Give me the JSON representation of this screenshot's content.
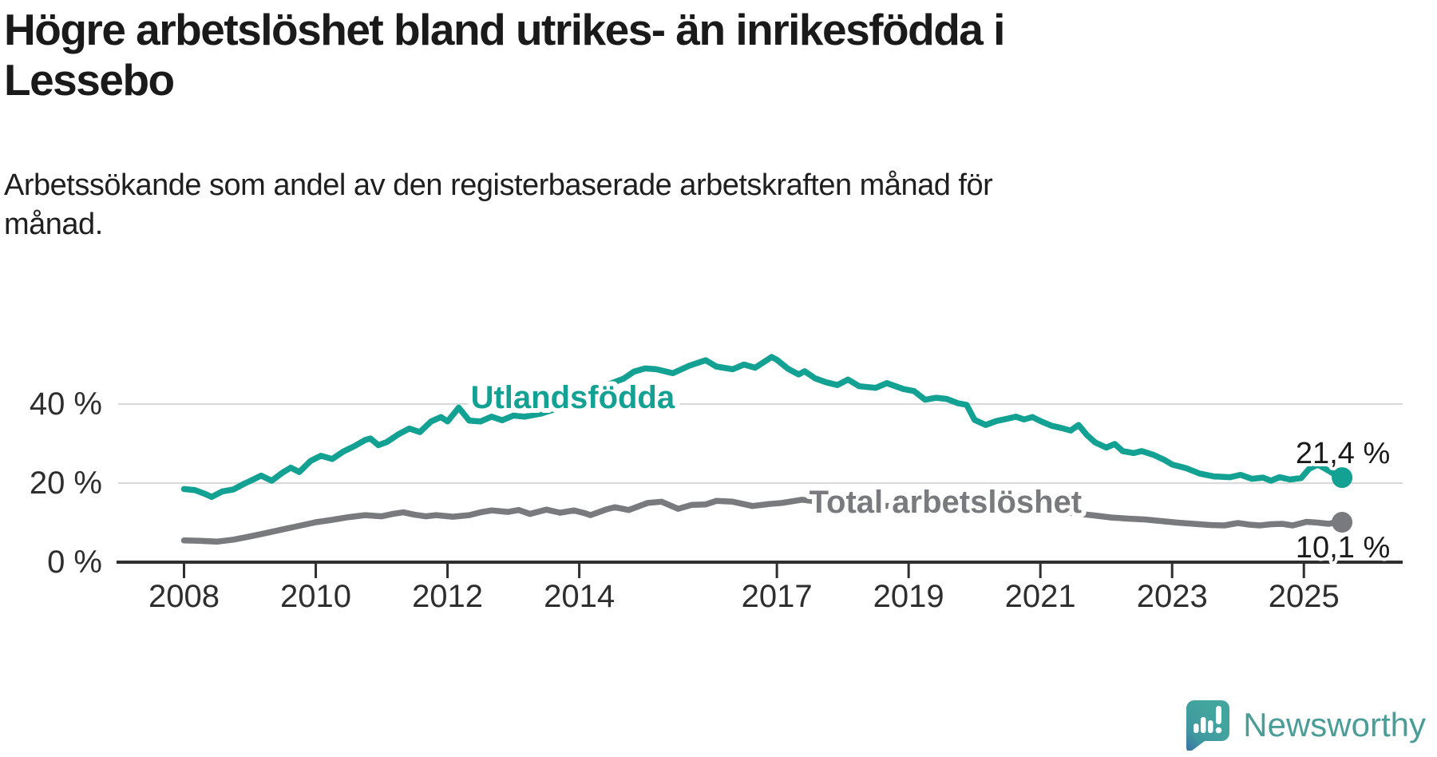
{
  "header": {
    "title_lines": [
      "Högre arbetslöshet bland utrikes- än inrikesfödda i",
      "Lessebo"
    ],
    "subtitle_lines": [
      "Arbetssökande som andel av den registerbaserade arbetskraften månad för",
      "månad."
    ]
  },
  "chart_data": {
    "type": "line",
    "title": "Högre arbetslöshet bland utrikes- än inrikesfödda i Lessebo",
    "subtitle": "Arbetssökande som andel av den registerbaserade arbetskraften månad för månad.",
    "xlabel": "",
    "ylabel": "",
    "grid": "horizontal",
    "xlim": [
      2007.0,
      2026.5
    ],
    "ylim": [
      0,
      57
    ],
    "x_ticks": [
      2008,
      2010,
      2012,
      2014,
      2017,
      2019,
      2021,
      2023,
      2025
    ],
    "x_tick_labels": [
      "2008",
      "2010",
      "2012",
      "2014",
      "2017",
      "2019",
      "2021",
      "2023",
      "2025"
    ],
    "y_ticks": [
      0,
      20,
      40
    ],
    "y_tick_labels": [
      "0 %",
      "20 %",
      "40 %"
    ],
    "axis_color": "#2f2f2f",
    "grid_color": "#d9d9d9",
    "series": [
      {
        "name": "Total arbetslöshet",
        "color": "#797a7d",
        "end_label": "10,1 %",
        "end_value": 10.1,
        "label_anchor": {
          "x": 2019.56,
          "y": 15.35
        },
        "points": [
          [
            2008.0,
            5.5
          ],
          [
            2008.25,
            5.4
          ],
          [
            2008.5,
            5.2
          ],
          [
            2008.75,
            5.7
          ],
          [
            2009.0,
            6.5
          ],
          [
            2009.25,
            7.4
          ],
          [
            2009.5,
            8.3
          ],
          [
            2009.75,
            9.2
          ],
          [
            2010.0,
            10.1
          ],
          [
            2010.25,
            10.7
          ],
          [
            2010.5,
            11.4
          ],
          [
            2010.75,
            11.9
          ],
          [
            2011.0,
            11.6
          ],
          [
            2011.17,
            12.2
          ],
          [
            2011.33,
            12.6
          ],
          [
            2011.5,
            12.0
          ],
          [
            2011.67,
            11.6
          ],
          [
            2011.83,
            11.9
          ],
          [
            2012.08,
            11.5
          ],
          [
            2012.33,
            11.9
          ],
          [
            2012.5,
            12.6
          ],
          [
            2012.67,
            13.1
          ],
          [
            2012.92,
            12.7
          ],
          [
            2013.08,
            13.2
          ],
          [
            2013.25,
            12.2
          ],
          [
            2013.5,
            13.3
          ],
          [
            2013.71,
            12.5
          ],
          [
            2013.92,
            13.1
          ],
          [
            2014.08,
            12.4
          ],
          [
            2014.17,
            11.9
          ],
          [
            2014.42,
            13.4
          ],
          [
            2014.54,
            13.9
          ],
          [
            2014.75,
            13.2
          ],
          [
            2015.04,
            15.0
          ],
          [
            2015.25,
            15.3
          ],
          [
            2015.5,
            13.5
          ],
          [
            2015.71,
            14.5
          ],
          [
            2015.92,
            14.6
          ],
          [
            2016.08,
            15.5
          ],
          [
            2016.33,
            15.3
          ],
          [
            2016.63,
            14.2
          ],
          [
            2016.88,
            14.7
          ],
          [
            2017.08,
            15.0
          ],
          [
            2017.38,
            15.8
          ],
          [
            2017.54,
            15.5
          ],
          [
            2017.71,
            14.7
          ],
          [
            2017.92,
            14.4
          ],
          [
            2018.17,
            14.9
          ],
          [
            2018.5,
            14.4
          ],
          [
            2018.83,
            14.1
          ],
          [
            2019.17,
            13.8
          ],
          [
            2019.5,
            13.5
          ],
          [
            2019.83,
            13.3
          ],
          [
            2020.08,
            13.5
          ],
          [
            2020.33,
            14.2
          ],
          [
            2020.58,
            14.3
          ],
          [
            2020.83,
            13.9
          ],
          [
            2021.17,
            13.1
          ],
          [
            2021.5,
            12.4
          ],
          [
            2021.83,
            11.8
          ],
          [
            2022.08,
            11.3
          ],
          [
            2022.33,
            11.0
          ],
          [
            2022.58,
            10.8
          ],
          [
            2022.83,
            10.4
          ],
          [
            2023.08,
            10.0
          ],
          [
            2023.33,
            9.7
          ],
          [
            2023.58,
            9.4
          ],
          [
            2023.79,
            9.3
          ],
          [
            2024.0,
            9.9
          ],
          [
            2024.17,
            9.5
          ],
          [
            2024.33,
            9.3
          ],
          [
            2024.5,
            9.6
          ],
          [
            2024.67,
            9.7
          ],
          [
            2024.83,
            9.3
          ],
          [
            2025.04,
            10.2
          ],
          [
            2025.21,
            10.0
          ],
          [
            2025.38,
            9.7
          ],
          [
            2025.5,
            10.2
          ],
          [
            2025.58,
            10.1
          ]
        ]
      },
      {
        "name": "Utlandsfödda",
        "color": "#12a192",
        "end_label": "21,4 %",
        "end_value": 21.4,
        "label_anchor": {
          "x": 2013.9,
          "y": 41.8
        },
        "points": [
          [
            2008.0,
            18.5
          ],
          [
            2008.17,
            18.2
          ],
          [
            2008.33,
            17.2
          ],
          [
            2008.42,
            16.5
          ],
          [
            2008.58,
            17.9
          ],
          [
            2008.75,
            18.4
          ],
          [
            2008.92,
            19.9
          ],
          [
            2009.0,
            20.5
          ],
          [
            2009.17,
            21.9
          ],
          [
            2009.33,
            20.6
          ],
          [
            2009.5,
            22.7
          ],
          [
            2009.62,
            23.9
          ],
          [
            2009.75,
            22.8
          ],
          [
            2009.92,
            25.6
          ],
          [
            2010.08,
            26.9
          ],
          [
            2010.25,
            26.1
          ],
          [
            2010.42,
            28.0
          ],
          [
            2010.58,
            29.3
          ],
          [
            2010.75,
            30.9
          ],
          [
            2010.83,
            31.3
          ],
          [
            2010.95,
            29.6
          ],
          [
            2011.08,
            30.4
          ],
          [
            2011.25,
            32.3
          ],
          [
            2011.42,
            33.8
          ],
          [
            2011.58,
            32.9
          ],
          [
            2011.75,
            35.6
          ],
          [
            2011.9,
            36.7
          ],
          [
            2012.0,
            35.6
          ],
          [
            2012.17,
            39.1
          ],
          [
            2012.33,
            35.8
          ],
          [
            2012.5,
            35.6
          ],
          [
            2012.67,
            36.8
          ],
          [
            2012.83,
            35.9
          ],
          [
            2013.0,
            37.1
          ],
          [
            2013.17,
            36.8
          ],
          [
            2013.42,
            37.6
          ],
          [
            2013.67,
            38.9
          ],
          [
            2013.92,
            41.2
          ],
          [
            2014.17,
            43.0
          ],
          [
            2014.42,
            44.8
          ],
          [
            2014.67,
            46.4
          ],
          [
            2014.83,
            48.2
          ],
          [
            2015.0,
            49.0
          ],
          [
            2015.17,
            48.8
          ],
          [
            2015.42,
            47.8
          ],
          [
            2015.67,
            49.7
          ],
          [
            2015.92,
            51.1
          ],
          [
            2016.08,
            49.5
          ],
          [
            2016.33,
            48.8
          ],
          [
            2016.5,
            50.0
          ],
          [
            2016.67,
            49.2
          ],
          [
            2016.92,
            51.9
          ],
          [
            2017.0,
            51.2
          ],
          [
            2017.17,
            48.9
          ],
          [
            2017.33,
            47.5
          ],
          [
            2017.42,
            48.3
          ],
          [
            2017.58,
            46.5
          ],
          [
            2017.75,
            45.5
          ],
          [
            2017.92,
            44.8
          ],
          [
            2018.08,
            46.2
          ],
          [
            2018.25,
            44.5
          ],
          [
            2018.5,
            44.1
          ],
          [
            2018.67,
            45.3
          ],
          [
            2018.92,
            43.8
          ],
          [
            2019.08,
            43.3
          ],
          [
            2019.25,
            41.1
          ],
          [
            2019.42,
            41.6
          ],
          [
            2019.58,
            41.3
          ],
          [
            2019.75,
            40.2
          ],
          [
            2019.88,
            39.8
          ],
          [
            2020.0,
            36.0
          ],
          [
            2020.17,
            34.7
          ],
          [
            2020.33,
            35.7
          ],
          [
            2020.5,
            36.3
          ],
          [
            2020.63,
            36.8
          ],
          [
            2020.75,
            36.1
          ],
          [
            2020.88,
            36.7
          ],
          [
            2021.0,
            35.7
          ],
          [
            2021.17,
            34.5
          ],
          [
            2021.33,
            33.9
          ],
          [
            2021.46,
            33.3
          ],
          [
            2021.58,
            34.7
          ],
          [
            2021.71,
            32.1
          ],
          [
            2021.83,
            30.3
          ],
          [
            2022.0,
            29.0
          ],
          [
            2022.13,
            29.9
          ],
          [
            2022.25,
            28.1
          ],
          [
            2022.42,
            27.6
          ],
          [
            2022.54,
            28.1
          ],
          [
            2022.71,
            27.2
          ],
          [
            2022.88,
            25.9
          ],
          [
            2023.0,
            24.7
          ],
          [
            2023.21,
            23.8
          ],
          [
            2023.42,
            22.4
          ],
          [
            2023.63,
            21.7
          ],
          [
            2023.88,
            21.5
          ],
          [
            2024.04,
            22.1
          ],
          [
            2024.21,
            21.1
          ],
          [
            2024.38,
            21.4
          ],
          [
            2024.5,
            20.6
          ],
          [
            2024.63,
            21.5
          ],
          [
            2024.79,
            20.9
          ],
          [
            2024.96,
            21.3
          ],
          [
            2025.08,
            23.6
          ],
          [
            2025.21,
            24.7
          ],
          [
            2025.38,
            23.1
          ],
          [
            2025.5,
            21.9
          ],
          [
            2025.58,
            21.4
          ]
        ]
      }
    ]
  },
  "footer": {
    "brand": "Newsworthy",
    "brand_color": "#4b9d98"
  }
}
